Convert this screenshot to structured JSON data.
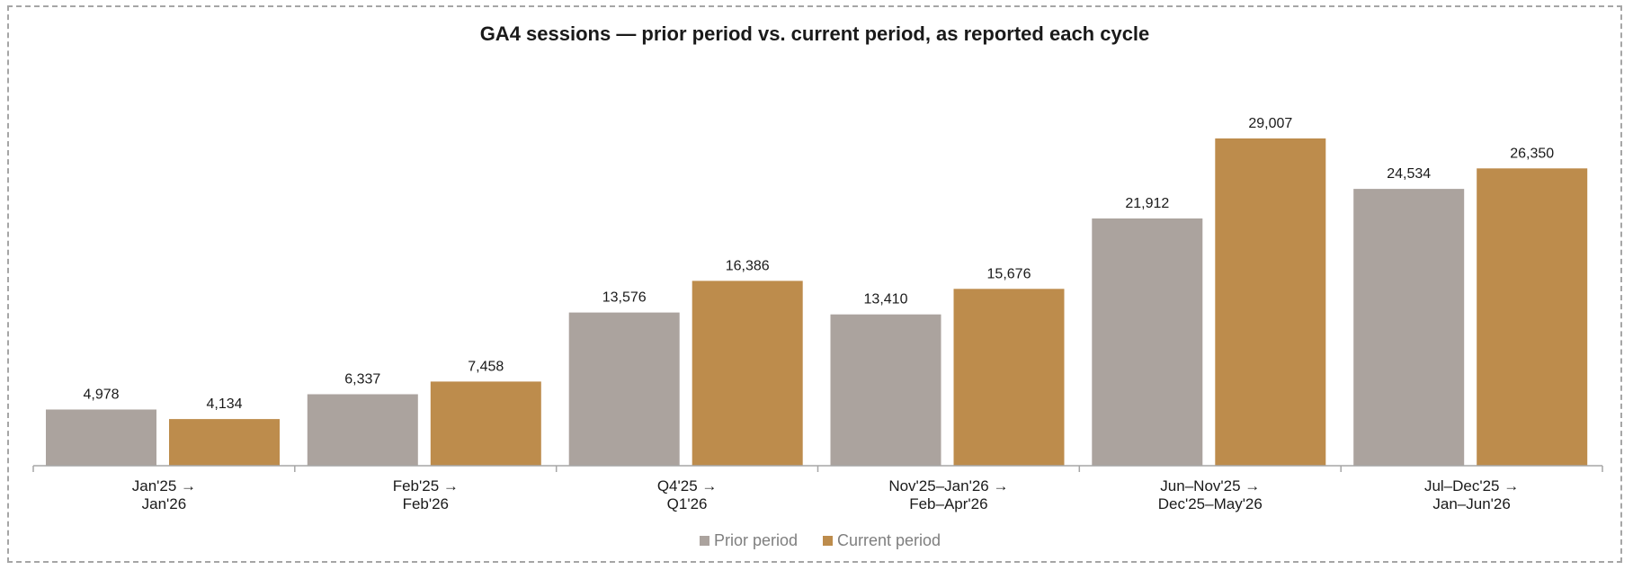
{
  "chart_data": {
    "type": "bar",
    "title": "GA4 sessions — prior period vs. current period, as reported each cycle",
    "categories": [
      [
        "Jan'25 →",
        "Jan'26"
      ],
      [
        "Feb'25 →",
        "Feb'26"
      ],
      [
        "Q4'25 →",
        "Q1'26"
      ],
      [
        "Nov'25–Jan'26 →",
        "Feb–Apr'26"
      ],
      [
        "Jun–Nov'25 →",
        "Dec'25–May'26"
      ],
      [
        "Jul–Dec'25 →",
        "Jan–Jun'26"
      ]
    ],
    "series": [
      {
        "name": "Prior period",
        "color": "#aba39e",
        "values": [
          4978,
          6337,
          13576,
          13410,
          21912,
          24534
        ],
        "labels": [
          "4,978",
          "6,337",
          "13,576",
          "13,410",
          "21,912",
          "24,534"
        ]
      },
      {
        "name": "Current period",
        "color": "#bd8c4c",
        "values": [
          4134,
          7458,
          16386,
          15676,
          29007,
          26350
        ],
        "labels": [
          "4,134",
          "7,458",
          "16,386",
          "15,676",
          "29,007",
          "26,350"
        ]
      }
    ],
    "ylim": [
      0,
      31000
    ],
    "grid": false,
    "legend": "bottom-center",
    "axis_color": "#a6a6a6"
  }
}
